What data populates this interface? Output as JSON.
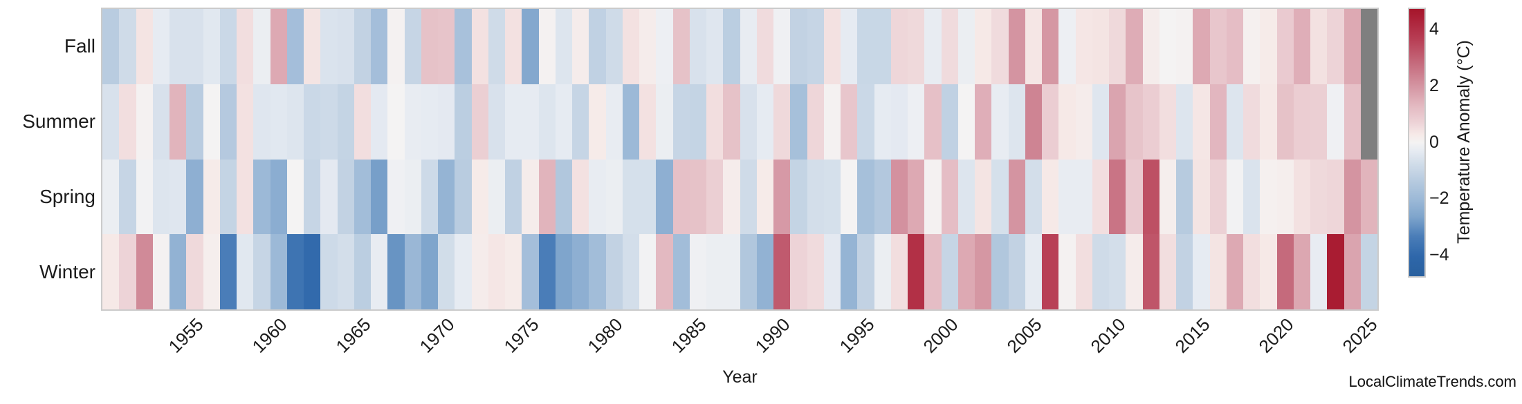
{
  "figure": {
    "background": "#ffffff"
  },
  "y_axis": {
    "categories": [
      "Fall",
      "Summer",
      "Spring",
      "Winter"
    ]
  },
  "x_axis": {
    "label": "Year",
    "tick_labels": [
      "1955",
      "1960",
      "1965",
      "1970",
      "1975",
      "1980",
      "1985",
      "1990",
      "1995",
      "2000",
      "2005",
      "2010",
      "2015",
      "2020",
      "2025"
    ]
  },
  "colorbar": {
    "label": "Temperature Anomaly (°C)",
    "tick_labels": [
      "4",
      "2",
      "0",
      "−2",
      "−4"
    ],
    "tick_values": [
      4,
      2,
      0,
      -2,
      -4
    ],
    "vmin": -4.7,
    "vmax": 4.7
  },
  "watermark": "LocalClimateTrends.com",
  "chart_data": {
    "type": "heatmap",
    "xlabel": "Year",
    "colorbar_label": "Temperature Anomaly (°C)",
    "row_categories": [
      "Fall",
      "Summer",
      "Spring",
      "Winter"
    ],
    "x_years": [
      1950,
      1951,
      1952,
      1953,
      1954,
      1955,
      1956,
      1957,
      1958,
      1959,
      1960,
      1961,
      1962,
      1963,
      1964,
      1965,
      1966,
      1967,
      1968,
      1969,
      1970,
      1971,
      1972,
      1973,
      1974,
      1975,
      1976,
      1977,
      1978,
      1979,
      1980,
      1981,
      1982,
      1983,
      1984,
      1985,
      1986,
      1987,
      1988,
      1989,
      1990,
      1991,
      1992,
      1993,
      1994,
      1995,
      1996,
      1997,
      1998,
      1999,
      2000,
      2001,
      2002,
      2003,
      2004,
      2005,
      2006,
      2007,
      2008,
      2009,
      2010,
      2011,
      2012,
      2013,
      2014,
      2015,
      2016,
      2017,
      2018,
      2019,
      2020,
      2021,
      2022,
      2023,
      2024,
      2025
    ],
    "series": [
      {
        "name": "Fall",
        "values": [
          -1.3,
          -0.8,
          0.4,
          -0.3,
          -0.6,
          -0.6,
          -0.4,
          -0.9,
          0.5,
          -0.2,
          1.6,
          -1.8,
          0.4,
          -0.55,
          -0.6,
          -1.1,
          -1.8,
          0.05,
          -1.0,
          1.1,
          1.05,
          -1.7,
          0.45,
          -0.8,
          0.45,
          -2.5,
          0.05,
          -0.5,
          0.2,
          -1.15,
          -0.8,
          0.45,
          0.2,
          -0.15,
          1.1,
          -0.6,
          -0.45,
          -1.25,
          -0.25,
          0.55,
          -0.1,
          -1.1,
          -1.0,
          0.45,
          -0.3,
          -0.95,
          -0.95,
          0.65,
          0.6,
          -0.25,
          0.55,
          -0.2,
          0.3,
          0.55,
          2.0,
          0.35,
          1.95,
          -0.15,
          0.35,
          0.4,
          0.6,
          1.55,
          0.2,
          0.0,
          0.05,
          1.6,
          1.0,
          1.2,
          0.1,
          0.25,
          0.9,
          1.5,
          0.45,
          0.7,
          1.6,
          null
        ]
      },
      {
        "name": "Summer",
        "values": [
          -0.6,
          0.5,
          0.05,
          -0.6,
          1.4,
          -1.3,
          0.0,
          -1.4,
          0.45,
          -0.45,
          -0.4,
          -0.5,
          -0.9,
          -0.85,
          -1.05,
          0.5,
          -0.35,
          0.0,
          -0.25,
          -0.3,
          -0.35,
          -1.25,
          0.8,
          -0.6,
          -0.3,
          -0.3,
          -0.5,
          -0.3,
          -1.0,
          0.25,
          -0.25,
          -2.0,
          0.45,
          -0.2,
          -1.0,
          -1.05,
          0.5,
          1.1,
          -0.6,
          -0.3,
          0.6,
          -1.75,
          0.65,
          0.05,
          1.0,
          -0.9,
          -0.3,
          -0.35,
          -0.15,
          1.15,
          -1.15,
          0.0,
          1.5,
          -0.25,
          -0.5,
          2.3,
          0.85,
          0.3,
          0.2,
          -0.45,
          1.7,
          1.05,
          0.85,
          0.5,
          -0.5,
          0.35,
          1.35,
          -0.5,
          0.55,
          0.3,
          1.1,
          0.85,
          0.8,
          -0.1,
          1.15,
          null
        ]
      },
      {
        "name": "Spring",
        "values": [
          -0.2,
          -1.0,
          -0.05,
          -0.5,
          -0.45,
          -2.3,
          0.25,
          -1.05,
          0.45,
          -2.0,
          -2.35,
          0.0,
          -1.0,
          -0.35,
          -1.1,
          -1.85,
          -2.7,
          -0.1,
          -0.2,
          -0.85,
          -2.15,
          -1.3,
          0.25,
          -0.2,
          -1.15,
          0.2,
          1.4,
          -1.5,
          0.45,
          -0.25,
          -0.2,
          -0.65,
          -0.65,
          -2.3,
          1.15,
          1.1,
          0.8,
          0.2,
          -0.8,
          0.25,
          1.9,
          -1.05,
          -0.7,
          -0.65,
          0.0,
          -1.75,
          -1.45,
          2.05,
          1.6,
          0.05,
          1.2,
          -0.5,
          0.4,
          -0.65,
          2.0,
          -0.7,
          0.3,
          -0.25,
          -0.25,
          0.5,
          2.6,
          0.9,
          3.3,
          0.15,
          -1.35,
          0.4,
          0.75,
          -0.05,
          -0.55,
          0.1,
          0.15,
          0.45,
          0.6,
          0.65,
          2.0,
          1.4
        ]
      },
      {
        "name": "Winter",
        "values": [
          0.3,
          0.7,
          2.2,
          0.05,
          -2.2,
          0.6,
          0.15,
          -3.3,
          -0.4,
          -1.0,
          -2.0,
          -3.6,
          -3.9,
          -0.85,
          -0.7,
          -1.25,
          -0.25,
          -2.9,
          -2.05,
          -2.6,
          -0.75,
          -0.3,
          0.2,
          0.35,
          0.25,
          -1.8,
          -3.3,
          -2.6,
          -2.3,
          -1.85,
          -1.1,
          -0.7,
          -0.05,
          1.3,
          -1.85,
          -0.1,
          -0.2,
          -0.2,
          -1.5,
          -2.2,
          3.1,
          0.7,
          0.55,
          -0.35,
          -2.15,
          -1.1,
          -0.2,
          0.5,
          4.0,
          1.2,
          -1.0,
          1.6,
          1.95,
          -1.5,
          -1.1,
          -0.3,
          3.6,
          0.05,
          0.5,
          -0.8,
          -0.7,
          0.2,
          3.2,
          0.5,
          -1.1,
          -0.3,
          0.4,
          1.6,
          0.5,
          0.3,
          2.8,
          1.65,
          -0.25,
          4.5,
          1.7,
          -1.05
        ]
      }
    ],
    "missing_cells": [
      [
        "Fall",
        2025
      ],
      [
        "Summer",
        2025
      ]
    ],
    "missing_color": "#7f7f7f",
    "vmin": -4.7,
    "vmax": 4.7,
    "colormap_anchors": [
      [
        -4.7,
        "#29609e"
      ],
      [
        -4.0,
        "#2e67aa"
      ],
      [
        -3.3,
        "#4a7db8"
      ],
      [
        -2.6,
        "#7fa5cc"
      ],
      [
        -2.0,
        "#9cb9d7"
      ],
      [
        -1.3,
        "#b9cce0"
      ],
      [
        -0.7,
        "#d3deea"
      ],
      [
        -0.3,
        "#e6ebf2"
      ],
      [
        0.0,
        "#f4f3f3"
      ],
      [
        0.3,
        "#f6e9e7"
      ],
      [
        0.7,
        "#edd3d7"
      ],
      [
        1.3,
        "#e3b9c1"
      ],
      [
        2.0,
        "#d494a1"
      ],
      [
        2.8,
        "#c56a7c"
      ],
      [
        3.6,
        "#b84056"
      ],
      [
        4.4,
        "#ab1f36"
      ],
      [
        4.7,
        "#a5152a"
      ]
    ]
  }
}
